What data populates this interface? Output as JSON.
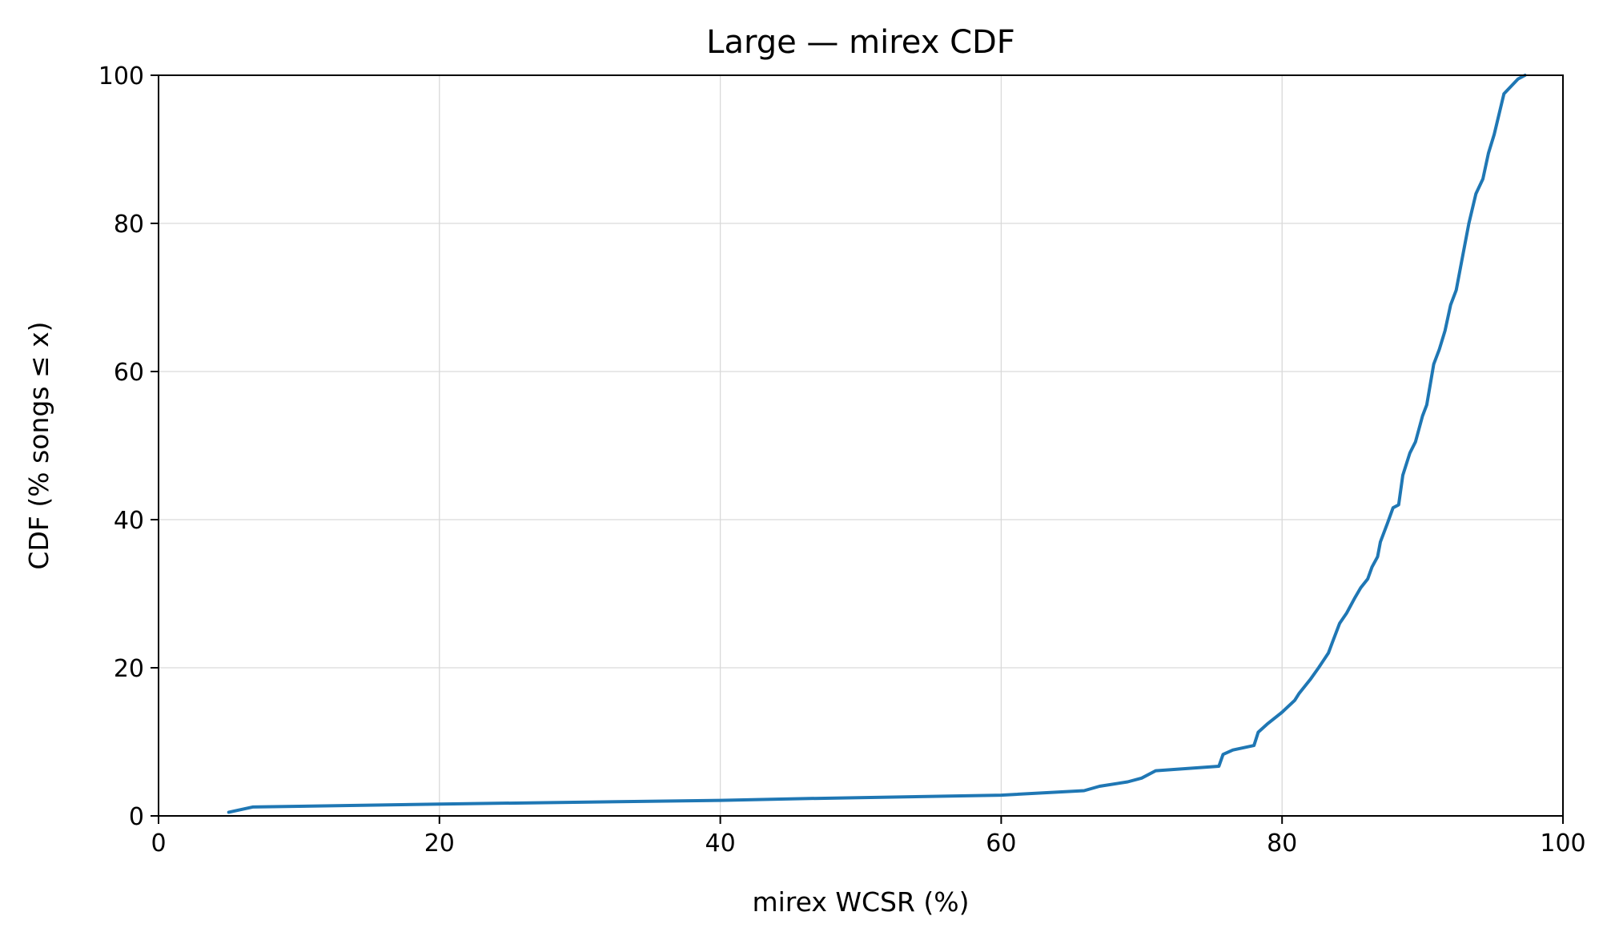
{
  "chart_data": {
    "type": "line",
    "title": "Large — mirex CDF",
    "xlabel": "mirex WCSR (%)",
    "ylabel": "CDF (% songs ≤ x)",
    "xlim": [
      0,
      100
    ],
    "ylim": [
      0,
      100
    ],
    "xticks": [
      0,
      20,
      40,
      60,
      80,
      100
    ],
    "yticks": [
      0,
      20,
      40,
      60,
      80,
      100
    ],
    "grid": true,
    "legend": "none",
    "series": [
      {
        "color": "#1f77b4",
        "x": [
          5.0,
          6.7,
          20,
          40,
          45,
          60,
          65.9,
          67,
          69,
          70,
          71,
          75.5,
          75.8,
          76.5,
          78,
          78.3,
          79,
          80,
          80.9,
          81.2,
          82,
          82.6,
          83.3,
          83.6,
          84.1,
          84.6,
          85.2,
          85.6,
          86.1,
          86.4,
          86.8,
          87.0,
          87.5,
          87.9,
          88.3,
          88.6,
          89.1,
          89.5,
          90.0,
          90.3,
          90.8,
          91.2,
          91.6,
          92.0,
          92.4,
          92.8,
          93.3,
          93.8,
          94.3,
          94.7,
          95.1,
          95.8,
          96.3,
          96.8,
          97.3
        ],
        "y": [
          0.5,
          1.2,
          1.6,
          2.1,
          2.3,
          2.8,
          3.4,
          4.0,
          4.6,
          5.1,
          6.1,
          6.7,
          8.3,
          8.9,
          9.5,
          11.3,
          12.5,
          14.0,
          15.6,
          16.5,
          18.4,
          20.0,
          22.0,
          23.5,
          26.0,
          27.4,
          29.5,
          30.8,
          32.0,
          33.6,
          35.0,
          37.0,
          39.5,
          41.6,
          42.0,
          46.0,
          49.0,
          50.5,
          54.0,
          55.5,
          61.0,
          63.0,
          65.5,
          69.0,
          71.0,
          75.0,
          80.0,
          84.0,
          86.0,
          89.5,
          92.0,
          97.5,
          98.5,
          99.5,
          100.0
        ]
      }
    ]
  }
}
